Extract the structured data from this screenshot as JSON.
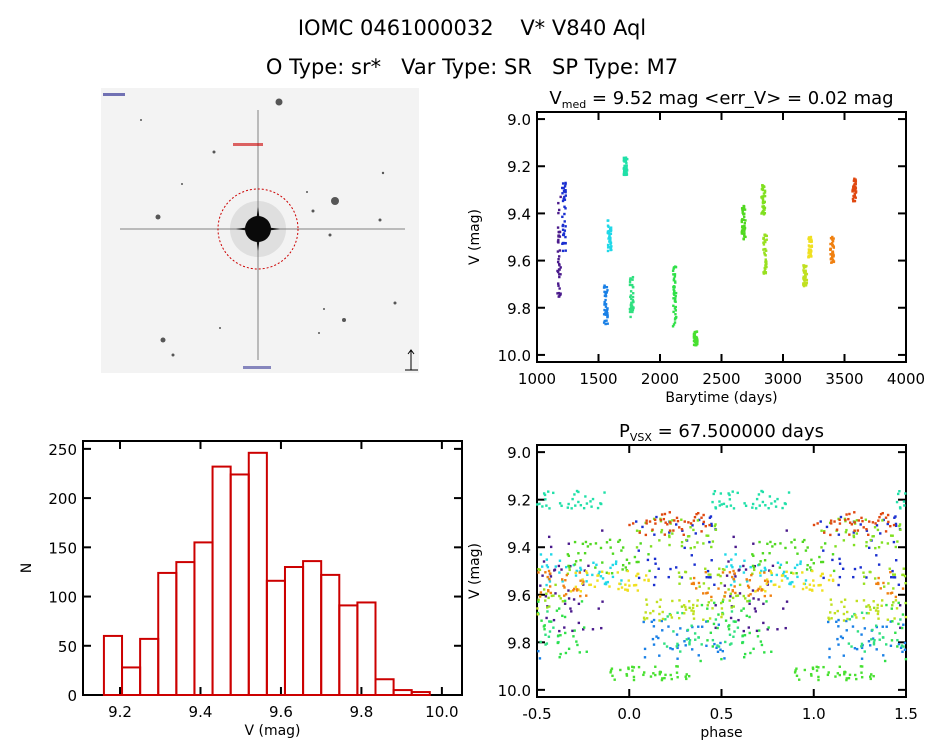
{
  "header": {
    "title": "IOMC 0461000032    V* V840 Aql",
    "subtitle": "O Type: sr*   Var Type: SR   SP Type: M7"
  },
  "image_panel": {
    "marker_color": "#cc0000"
  },
  "chart_data": [
    {
      "type": "scatter",
      "title_main": "V",
      "title_sub": "med",
      "title_rest": " = 9.52 mag <err_V> = 0.02 mag",
      "xlabel": "Barytime (days)",
      "ylabel": "V (mag)",
      "xlim": [
        1000,
        4000
      ],
      "ylim": [
        10.03,
        8.97
      ],
      "y_inverted": true,
      "xticks": [
        1000,
        1500,
        2000,
        2500,
        3000,
        3500,
        4000
      ],
      "xtick_labels": [
        "1000",
        "1500",
        "2000",
        "2500",
        "3000",
        "3500",
        "4000"
      ],
      "yticks": [
        9.0,
        9.2,
        9.4,
        9.6,
        9.8,
        10.0
      ],
      "ytick_labels": [
        "9.0",
        "9.2",
        "9.4",
        "9.6",
        "9.8",
        "10.0"
      ],
      "segments": [
        {
          "t": 1180,
          "vmin": 9.33,
          "vmax": 9.78,
          "color": "#4a1a8c"
        },
        {
          "t": 1220,
          "vmin": 9.27,
          "vmax": 9.56,
          "color": "#1a2fd0"
        },
        {
          "t": 1560,
          "vmin": 9.7,
          "vmax": 9.87,
          "color": "#1a80e6"
        },
        {
          "t": 1590,
          "vmin": 9.43,
          "vmax": 9.56,
          "color": "#20d8e8"
        },
        {
          "t": 1720,
          "vmin": 9.16,
          "vmax": 9.24,
          "color": "#20e0a8"
        },
        {
          "t": 1770,
          "vmin": 9.67,
          "vmax": 9.84,
          "color": "#30e080"
        },
        {
          "t": 2120,
          "vmin": 9.6,
          "vmax": 9.88,
          "color": "#30e048"
        },
        {
          "t": 2290,
          "vmin": 9.9,
          "vmax": 9.96,
          "color": "#48e030"
        },
        {
          "t": 2680,
          "vmin": 9.36,
          "vmax": 9.51,
          "color": "#50d820"
        },
        {
          "t": 2840,
          "vmin": 9.28,
          "vmax": 9.41,
          "color": "#80e020"
        },
        {
          "t": 2855,
          "vmin": 9.49,
          "vmax": 9.66,
          "color": "#98e020"
        },
        {
          "t": 3180,
          "vmin": 9.62,
          "vmax": 9.71,
          "color": "#c0e020"
        },
        {
          "t": 3220,
          "vmin": 9.5,
          "vmax": 9.59,
          "color": "#f0e020"
        },
        {
          "t": 3400,
          "vmin": 9.5,
          "vmax": 9.61,
          "color": "#f08010"
        },
        {
          "t": 3580,
          "vmin": 9.25,
          "vmax": 9.35,
          "color": "#e04810"
        }
      ]
    },
    {
      "type": "scatter",
      "title_main": "P",
      "title_sub": "VSX",
      "title_rest": " = 67.500000 days",
      "period_days": 67.5,
      "xlabel": "phase",
      "ylabel": "V (mag)",
      "xlim": [
        -0.5,
        1.5
      ],
      "ylim": [
        10.03,
        8.97
      ],
      "y_inverted": true,
      "xticks": [
        -0.5,
        0.0,
        0.5,
        1.0,
        1.5
      ],
      "xtick_labels": [
        "-0.5",
        "0.0",
        "0.5",
        "1.0",
        "1.5"
      ],
      "yticks": [
        9.0,
        9.2,
        9.4,
        9.6,
        9.8,
        10.0
      ],
      "ytick_labels": [
        "9.0",
        "9.2",
        "9.4",
        "9.6",
        "9.8",
        "10.0"
      ]
    },
    {
      "type": "bar",
      "xlabel": "V (mag)",
      "ylabel": "N",
      "xlim": [
        9.108,
        10.05
      ],
      "ylim": [
        0,
        258
      ],
      "bin_start": 9.16,
      "bin_width": 0.045,
      "values": [
        60,
        28,
        57,
        124,
        135,
        155,
        232,
        224,
        246,
        116,
        130,
        136,
        122,
        91,
        94,
        16,
        5,
        3
      ],
      "bar_color": "#cc0000",
      "xticks": [
        9.2,
        9.4,
        9.6,
        9.8,
        10.0
      ],
      "xtick_labels": [
        "9.2",
        "9.4",
        "9.6",
        "9.8",
        "10.0"
      ],
      "yticks": [
        0,
        50,
        100,
        150,
        200,
        250
      ],
      "ytick_labels": [
        "0",
        "50",
        "100",
        "150",
        "200",
        "250"
      ]
    }
  ]
}
